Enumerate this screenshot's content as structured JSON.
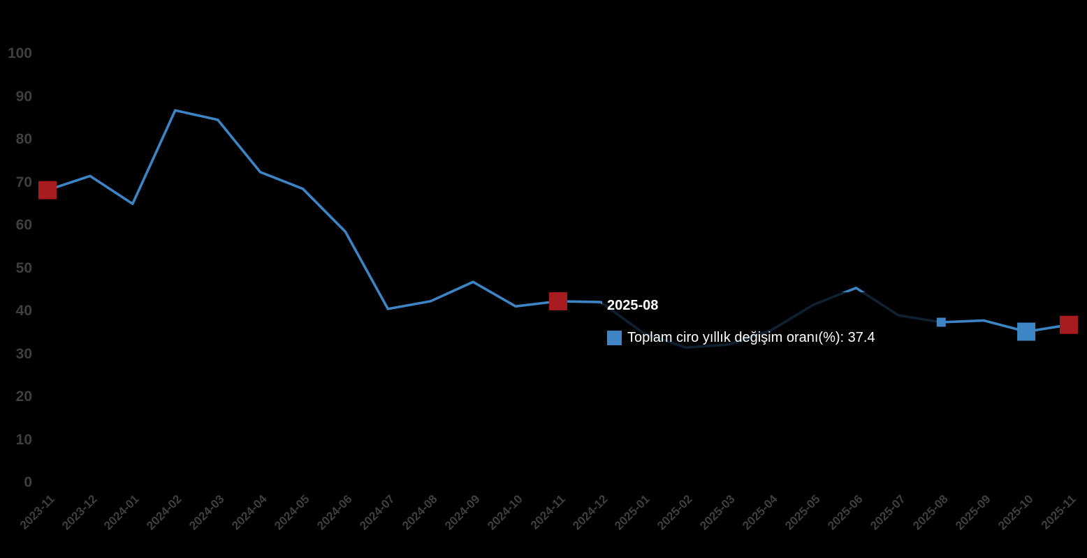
{
  "chart_data": {
    "type": "line",
    "categories": [
      "2023-11",
      "2023-12",
      "2024-01",
      "2024-02",
      "2024-03",
      "2024-04",
      "2024-05",
      "2024-06",
      "2024-07",
      "2024-08",
      "2024-09",
      "2024-10",
      "2024-11",
      "2024-12",
      "2025-01",
      "2025-02",
      "2025-03",
      "2025-04",
      "2025-05",
      "2025-06",
      "2025-07",
      "2025-08",
      "2025-09",
      "2025-10",
      "2025-11"
    ],
    "series": [
      {
        "name": "Toplam ciro yıllık değişim oranı(%)",
        "values": [
          68.2,
          71.5,
          65.0,
          86.8,
          84.6,
          72.4,
          68.5,
          58.5,
          40.5,
          42.3,
          46.8,
          41.1,
          42.3,
          42.1,
          34.9,
          31.5,
          32.2,
          35.5,
          41.5,
          45.4,
          39.0,
          37.4,
          37.8,
          35.2,
          36.8
        ],
        "color": "#3d84c4"
      }
    ],
    "xlabel": "",
    "ylabel": "",
    "ylim": [
      0,
      100
    ],
    "yticks": [
      0,
      10,
      20,
      30,
      40,
      50,
      60,
      70,
      80,
      90,
      100
    ],
    "grid": false,
    "legend_position": "tooltip-only",
    "point_markers": [
      {
        "category": "2023-11",
        "index": 0,
        "color": "#a81b1e",
        "size": 26
      },
      {
        "category": "2024-11",
        "index": 12,
        "color": "#a81b1e",
        "size": 26
      },
      {
        "category": "2025-08",
        "index": 21,
        "color": "#3d85c4",
        "size": 13
      },
      {
        "category": "2025-10",
        "index": 23,
        "color": "#3d85c4",
        "size": 26
      },
      {
        "category": "2025-11",
        "index": 24,
        "color": "#a81b1e",
        "size": 26
      }
    ],
    "hovered_category": "2025-08"
  },
  "tooltip": {
    "title": "2025-08",
    "series_label": "Toplam ciro yıllık değişim oranı(%)",
    "separator": ": ",
    "value": "37.4",
    "swatch_color": "#3d85c4"
  },
  "colors": {
    "background": "#000000",
    "line": "#3d84c4",
    "marker_blue": "#3d85c4",
    "marker_red": "#a81b1e",
    "axis_label": "#3f3f3f",
    "tooltip_text": "#ffffff"
  }
}
